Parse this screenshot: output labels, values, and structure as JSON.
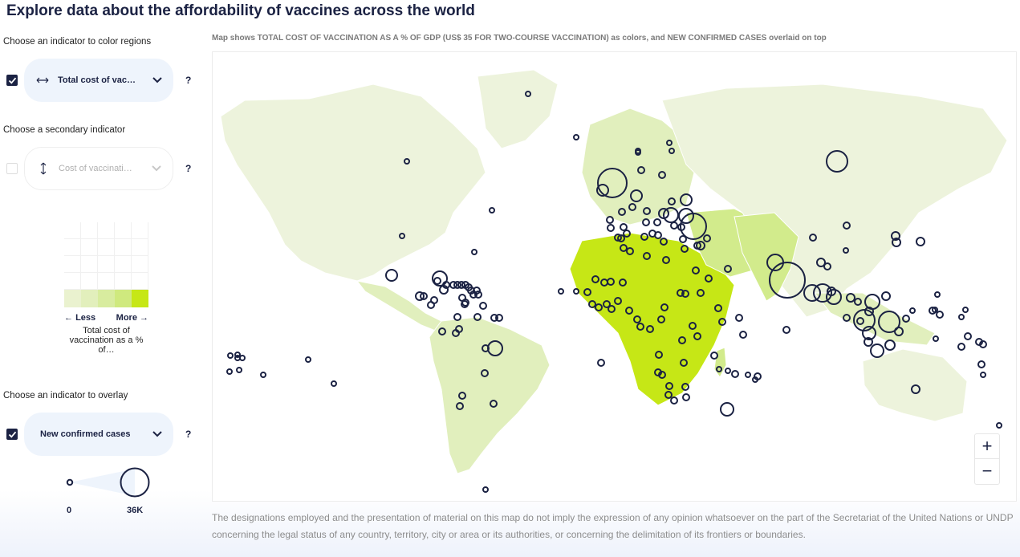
{
  "title": "Explore data about the affordability of vaccines across the world",
  "left": {
    "primary": {
      "label": "Choose an indicator to color regions",
      "value": "Total cost of vac…",
      "checked": true,
      "help": "?"
    },
    "secondary": {
      "label": "Choose a secondary indicator",
      "value": "Cost of vaccinati…",
      "checked": false,
      "help": "?"
    },
    "legend": {
      "less": "Less",
      "more": "More",
      "caption": "Total cost of vaccination as a % of…",
      "colors": [
        "#eaf2cf",
        "#e2efbc",
        "#d8ec9f",
        "#cfe97e",
        "#c6e716"
      ]
    },
    "overlay": {
      "label": "Choose an indicator to overlay",
      "value": "New confirmed cases",
      "checked": true,
      "help": "?",
      "min_label": "0",
      "max_label": "36K"
    }
  },
  "map": {
    "caption": "Map shows TOTAL COST OF VACCINATION AS A % OF GDP (US$ 35 FOR TWO-COURSE VACCINATION) as colors, and NEW CONFIRMED CASES overlaid on top",
    "zoom_in": "+",
    "zoom_out": "−",
    "colors": {
      "land_light": "#edf3dc",
      "land_mid": "#e1efbd",
      "land_high": "#d2eb8c",
      "land_max": "#c6e716",
      "bubble": "#1b2243"
    }
  },
  "disclaimer": "The designations employed and the presentation of material on this map do not imply the expression of any opinion whatsoever on the part of the Secretariat of the United Nations or UNDP concerning the legal status of any country, territory, city or area or its authorities, or concerning the delimitation of its frontiers or boundaries."
}
